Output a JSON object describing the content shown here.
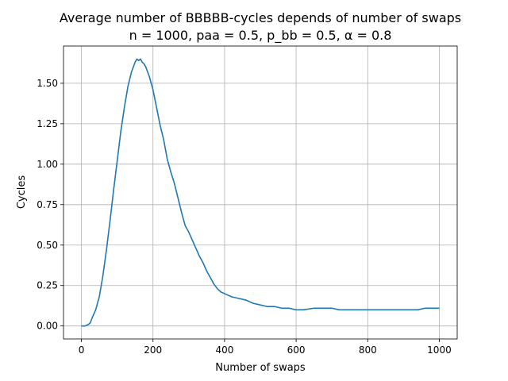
{
  "chart_data": {
    "type": "line",
    "title": "Average number of BBBBB-cycles depends of number of swaps",
    "subtitle": "n = 1000, paa = 0.5, p_bb = 0.5, α = 0.8",
    "xlabel": "Number of swaps",
    "ylabel": "Cycles",
    "xlim": [
      -50,
      1050
    ],
    "ylim": [
      -0.08,
      1.73
    ],
    "xticks": [
      0,
      200,
      400,
      600,
      800,
      1000
    ],
    "xtick_labels": [
      "0",
      "200",
      "400",
      "600",
      "800",
      "1000"
    ],
    "yticks": [
      0.0,
      0.25,
      0.5,
      0.75,
      1.0,
      1.25,
      1.5
    ],
    "ytick_labels": [
      "0.00",
      "0.25",
      "0.50",
      "0.75",
      "1.00",
      "1.25",
      "1.50"
    ],
    "grid": true,
    "color": "#1f77b4",
    "series": [
      {
        "x": [
          0,
          10,
          20,
          25,
          30,
          40,
          50,
          60,
          70,
          80,
          90,
          100,
          110,
          120,
          130,
          140,
          145,
          150,
          155,
          160,
          165,
          170,
          175,
          180,
          190,
          200,
          210,
          220,
          230,
          240,
          250,
          260,
          270,
          280,
          290,
          300,
          310,
          320,
          330,
          340,
          350,
          360,
          370,
          380,
          390,
          400,
          420,
          440,
          460,
          480,
          500,
          520,
          540,
          560,
          580,
          600,
          620,
          650,
          680,
          700,
          720,
          750,
          780,
          800,
          820,
          840,
          860,
          880,
          900,
          920,
          940,
          960,
          980,
          1000
        ],
        "y": [
          0.0,
          0.0,
          0.01,
          0.02,
          0.05,
          0.1,
          0.18,
          0.31,
          0.47,
          0.65,
          0.84,
          1.02,
          1.2,
          1.35,
          1.48,
          1.57,
          1.6,
          1.63,
          1.65,
          1.64,
          1.65,
          1.63,
          1.62,
          1.6,
          1.54,
          1.46,
          1.35,
          1.24,
          1.15,
          1.03,
          0.95,
          0.88,
          0.79,
          0.7,
          0.62,
          0.58,
          0.53,
          0.48,
          0.43,
          0.39,
          0.34,
          0.3,
          0.26,
          0.23,
          0.21,
          0.2,
          0.18,
          0.17,
          0.16,
          0.14,
          0.13,
          0.12,
          0.12,
          0.11,
          0.11,
          0.1,
          0.1,
          0.11,
          0.11,
          0.11,
          0.1,
          0.1,
          0.1,
          0.1,
          0.1,
          0.1,
          0.1,
          0.1,
          0.1,
          0.1,
          0.1,
          0.11,
          0.11,
          0.11
        ]
      }
    ]
  }
}
